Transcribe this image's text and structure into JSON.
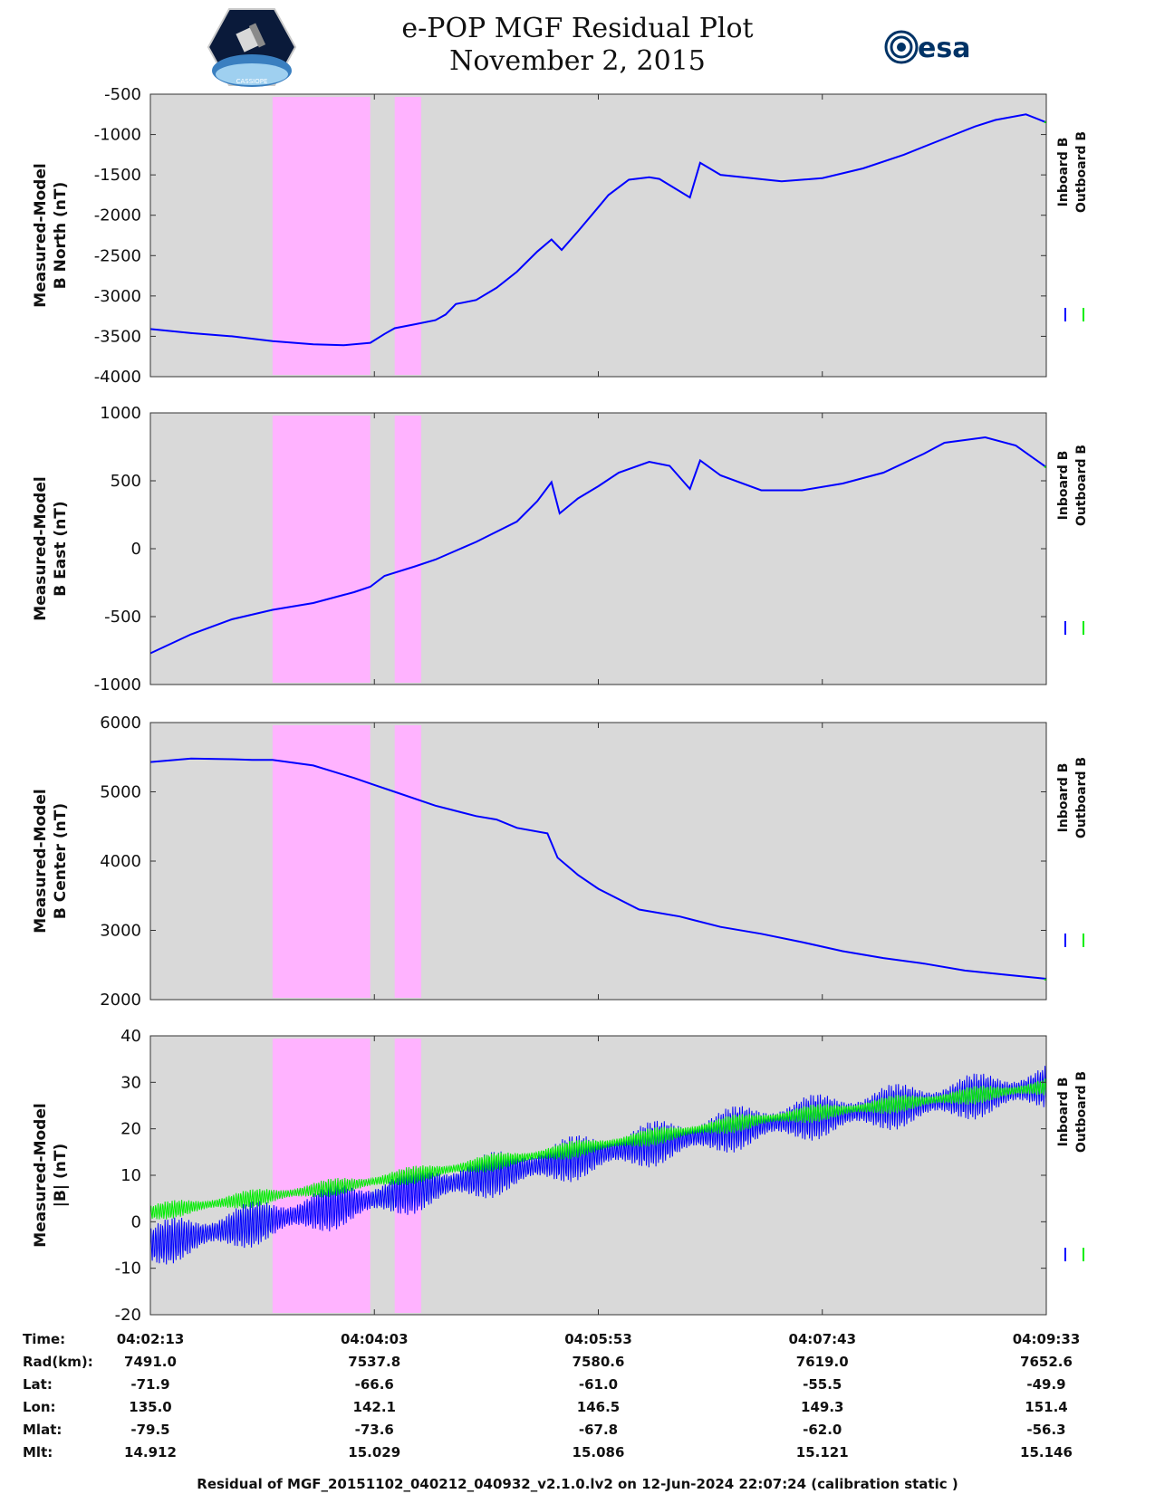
{
  "title": "e-POP MGF Residual Plot",
  "subtitle": "November 2, 2015",
  "esa_logo_text": "esa",
  "mission_logo_text": "CASSIOPE",
  "footer": "Residual of MGF_20151102_040212_040932_v2.1.0.lv2 on 12-Jun-2024 22:07:24 (calibration static )",
  "colors": {
    "inboard": "#0000ff",
    "outboard": "#00ee00",
    "background": "#d9d9d9",
    "shading": "#ffb3ff"
  },
  "table": {
    "row_labels": [
      "Time:",
      "Rad(km):",
      "Lat:",
      "Lon:",
      "Mlat:",
      "Mlt:"
    ],
    "columns": [
      [
        "04:02:13",
        "7491.0",
        "-71.9",
        "135.0",
        "-79.5",
        "14.912"
      ],
      [
        "04:04:03",
        "7537.8",
        "-66.6",
        "142.1",
        "-73.6",
        "15.029"
      ],
      [
        "04:05:53",
        "7580.6",
        "-61.0",
        "146.5",
        "-67.8",
        "15.086"
      ],
      [
        "04:07:43",
        "7619.0",
        "-55.5",
        "149.3",
        "-62.0",
        "15.121"
      ],
      [
        "04:09:33",
        "7652.6",
        "-49.9",
        "151.4",
        "-56.3",
        "15.146"
      ]
    ]
  },
  "chart_data": [
    {
      "type": "line",
      "ylabel_line1": "Measured-Model",
      "ylabel_line2": "B North (nT)",
      "ylim": [
        -4000,
        -500
      ],
      "yticks": [
        "-500",
        "-1000",
        "-1500",
        "-2000",
        "-2500",
        "-3000",
        "-3500",
        "-4000"
      ],
      "xlim_seconds": [
        0,
        440
      ],
      "xticks": [
        "04:02:13",
        "04:04:03",
        "04:05:53",
        "04:07:43",
        "04:09:33"
      ],
      "grid": false,
      "shaded_intervals_seconds": [
        [
          60,
          108
        ],
        [
          120,
          133
        ]
      ],
      "series": [
        {
          "name": "Inboard B",
          "x": [
            0,
            20,
            40,
            60,
            80,
            95,
            108,
            115,
            120,
            130,
            140,
            145,
            150,
            160,
            170,
            180,
            190,
            197,
            202,
            210,
            220,
            225,
            235,
            245,
            250,
            265,
            270,
            280,
            310,
            330,
            350,
            370,
            390,
            405,
            415,
            430,
            440
          ],
          "y": [
            -3410,
            -3460,
            -3500,
            -3560,
            -3600,
            -3610,
            -3580,
            -3470,
            -3400,
            -3350,
            -3300,
            -3230,
            -3100,
            -3050,
            -2900,
            -2700,
            -2450,
            -2300,
            -2430,
            -2200,
            -1900,
            -1750,
            -1560,
            -1530,
            -1550,
            -1780,
            -1350,
            -1500,
            -1580,
            -1540,
            -1420,
            -1250,
            -1050,
            -900,
            -820,
            -750,
            -850
          ]
        },
        {
          "name": "Outboard B",
          "x": [
            439,
            440
          ],
          "y": [
            -845,
            -850
          ]
        }
      ],
      "legend": [
        "Inboard B",
        "Outboard B"
      ]
    },
    {
      "type": "line",
      "ylabel_line1": "Measured-Model",
      "ylabel_line2": "B East (nT)",
      "ylim": [
        -1000,
        1000
      ],
      "yticks": [
        "1000",
        "500",
        "0",
        "-500",
        "-1000"
      ],
      "xlim_seconds": [
        0,
        440
      ],
      "xticks": [
        "04:02:13",
        "04:04:03",
        "04:05:53",
        "04:07:43",
        "04:09:33"
      ],
      "grid": false,
      "shaded_intervals_seconds": [
        [
          60,
          108
        ],
        [
          120,
          133
        ]
      ],
      "series": [
        {
          "name": "Inboard B",
          "x": [
            0,
            20,
            40,
            60,
            80,
            100,
            108,
            115,
            130,
            140,
            160,
            180,
            190,
            197,
            201,
            210,
            220,
            230,
            245,
            255,
            265,
            270,
            280,
            300,
            320,
            340,
            360,
            380,
            390,
            410,
            425,
            440
          ],
          "y": [
            -770,
            -630,
            -520,
            -450,
            -400,
            -320,
            -280,
            -200,
            -130,
            -80,
            50,
            200,
            350,
            490,
            260,
            370,
            460,
            560,
            640,
            610,
            440,
            650,
            540,
            430,
            430,
            480,
            560,
            700,
            780,
            820,
            760,
            600
          ]
        },
        {
          "name": "Outboard B",
          "x": [
            439,
            440
          ],
          "y": [
            605,
            600
          ]
        }
      ],
      "legend": [
        "Inboard B",
        "Outboard B"
      ]
    },
    {
      "type": "line",
      "ylabel_line1": "Measured-Model",
      "ylabel_line2": "B Center (nT)",
      "ylim": [
        2000,
        6000
      ],
      "yticks": [
        "6000",
        "5000",
        "4000",
        "3000",
        "2000"
      ],
      "xlim_seconds": [
        0,
        440
      ],
      "xticks": [
        "04:02:13",
        "04:04:03",
        "04:05:53",
        "04:07:43",
        "04:09:33"
      ],
      "grid": false,
      "shaded_intervals_seconds": [
        [
          60,
          108
        ],
        [
          120,
          133
        ]
      ],
      "series": [
        {
          "name": "Inboard B",
          "x": [
            0,
            20,
            40,
            50,
            60,
            80,
            100,
            110,
            120,
            140,
            160,
            170,
            180,
            195,
            200,
            210,
            220,
            240,
            260,
            280,
            300,
            320,
            340,
            360,
            380,
            400,
            420,
            440
          ],
          "y": [
            5430,
            5480,
            5470,
            5460,
            5460,
            5380,
            5200,
            5100,
            5000,
            4800,
            4650,
            4600,
            4480,
            4400,
            4050,
            3800,
            3600,
            3300,
            3200,
            3050,
            2950,
            2830,
            2700,
            2600,
            2520,
            2420,
            2360,
            2300
          ]
        },
        {
          "name": "Outboard B",
          "x": [
            439,
            440
          ],
          "y": [
            2290,
            2290
          ]
        }
      ],
      "legend": [
        "Inboard B",
        "Outboard B"
      ]
    },
    {
      "type": "line",
      "ylabel_line1": "Measured-Model",
      "ylabel_line2": "|B| (nT)",
      "ylim": [
        -20,
        40
      ],
      "yticks": [
        "40",
        "30",
        "20",
        "10",
        "0",
        "-10",
        "-20"
      ],
      "xlim_seconds": [
        0,
        440
      ],
      "xticks": [
        "04:02:13",
        "04:04:03",
        "04:05:53",
        "04:07:43",
        "04:09:33"
      ],
      "grid": false,
      "shaded_intervals_seconds": [
        [
          60,
          108
        ],
        [
          120,
          133
        ]
      ],
      "series": [
        {
          "name": "Inboard B",
          "x": [
            0,
            100,
            200,
            300,
            440
          ],
          "y": [
            -5,
            4,
            13,
            21,
            29
          ],
          "oscillation_amplitude": 5
        },
        {
          "name": "Outboard B",
          "x": [
            0,
            100,
            200,
            300,
            440
          ],
          "y": [
            2,
            8,
            15,
            22,
            29
          ],
          "oscillation_amplitude": 2
        }
      ],
      "legend": [
        "Inboard B",
        "Outboard B"
      ]
    }
  ]
}
